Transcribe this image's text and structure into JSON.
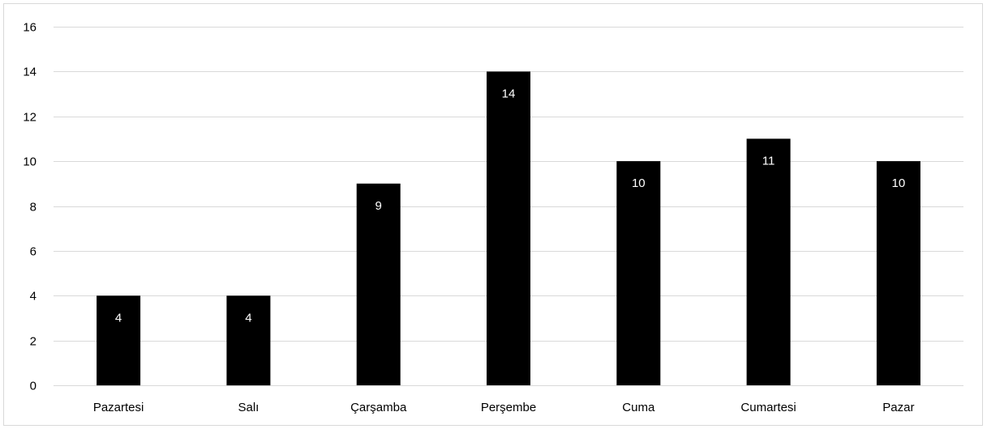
{
  "chart_data": {
    "type": "bar",
    "categories": [
      "Pazartesi",
      "Salı",
      "Çarşamba",
      "Perşembe",
      "Cuma",
      "Cumartesi",
      "Pazar"
    ],
    "values": [
      4,
      4,
      9,
      14,
      10,
      11,
      10
    ],
    "title": "",
    "xlabel": "",
    "ylabel": "",
    "ylim": [
      0,
      16
    ],
    "yticks": [
      0,
      2,
      4,
      6,
      8,
      10,
      12,
      14,
      16
    ],
    "grid": true,
    "legend": "none",
    "bar_color": "#000000",
    "data_label_color": "#ffffff",
    "gridline_color": "#d9d9d9"
  }
}
